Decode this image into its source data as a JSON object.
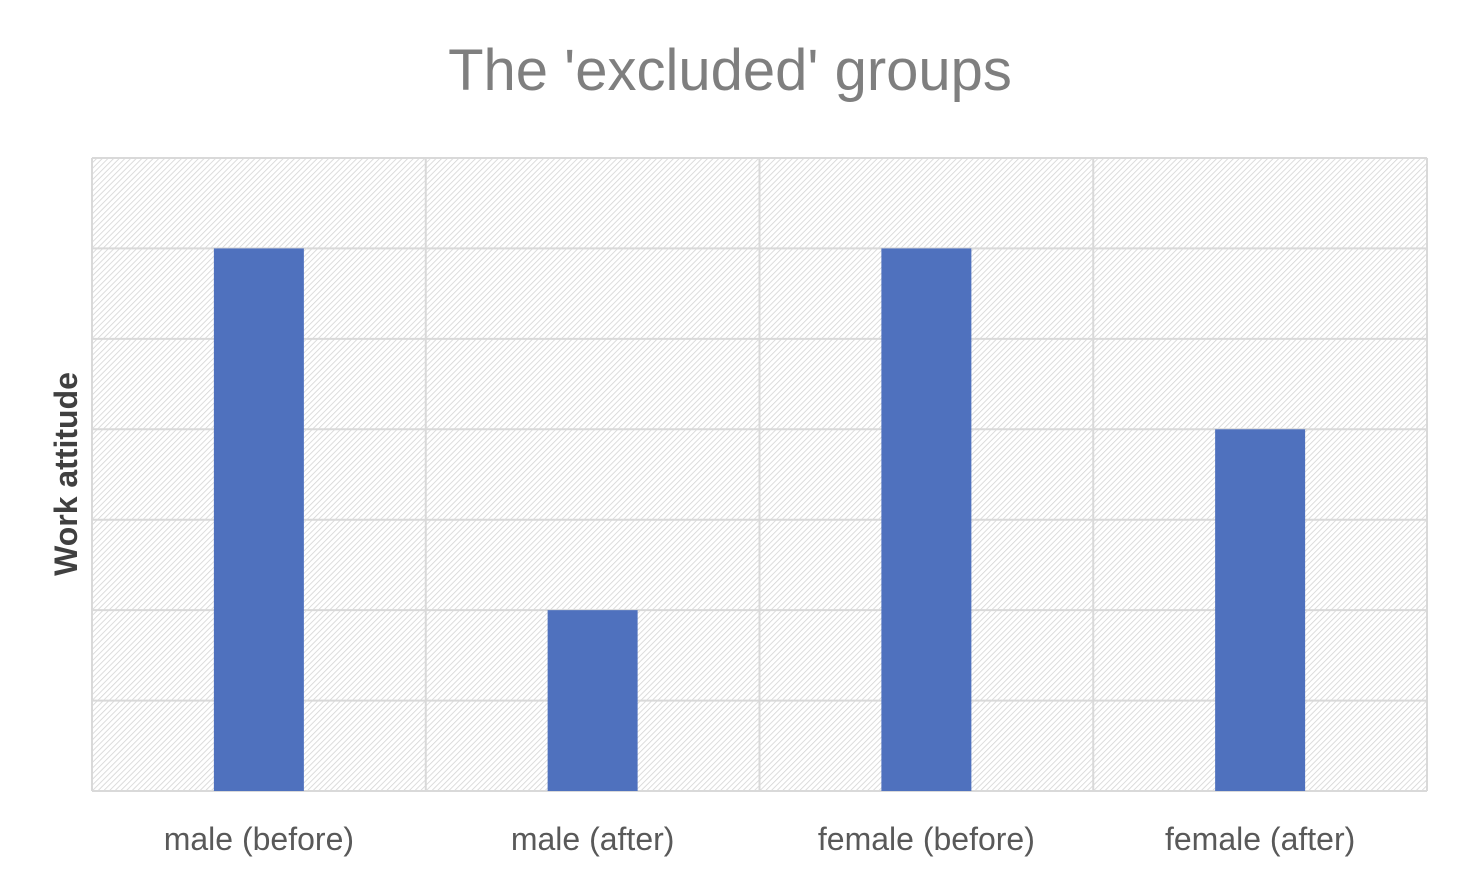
{
  "chart_data": {
    "type": "bar",
    "title": "The 'excluded' groups",
    "xlabel": "",
    "ylabel": "Work attitude",
    "categories": [
      "male (before)",
      "male (after)",
      "female (before)",
      "female (after)"
    ],
    "values": [
      6,
      2,
      6,
      4
    ],
    "ylim": [
      0,
      7
    ],
    "grid": true,
    "bar_color": "#4f71be",
    "grid_color": "#d9d9d9",
    "plot_pattern": "diagonal-hatch"
  }
}
